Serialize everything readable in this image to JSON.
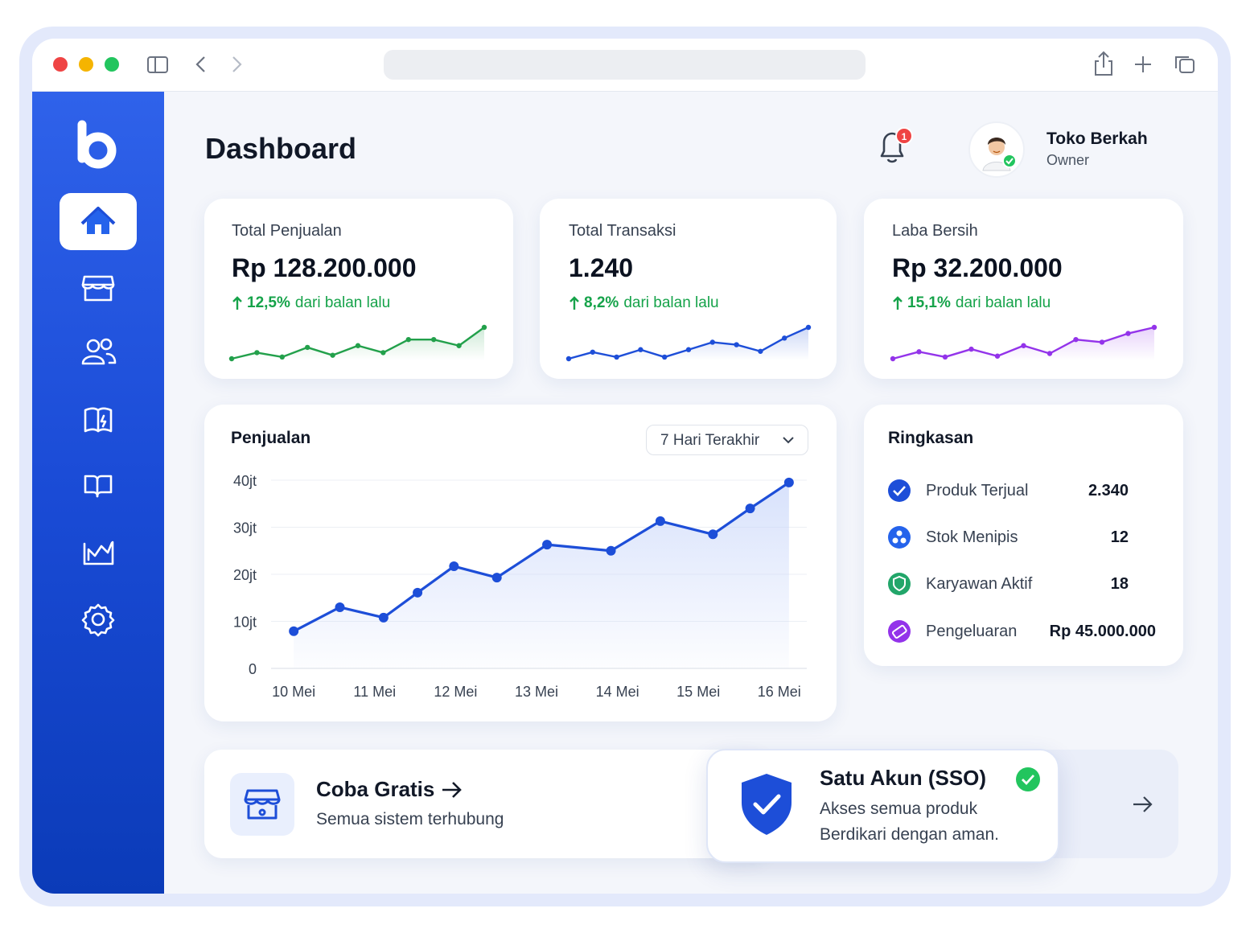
{
  "header": {
    "title": "Dashboard",
    "notification_count": "1",
    "user": {
      "name": "Toko Berkah",
      "role": "Owner"
    }
  },
  "stats": [
    {
      "label": "Total Penjualan",
      "value": "Rp 128.200.000",
      "change": "12,5%",
      "change_text": "dari balan lalu"
    },
    {
      "label": "Total Transaksi",
      "value": "1.240",
      "change": "8,2%",
      "change_text": "dari balan lalu"
    },
    {
      "label": "Laba Bersih",
      "value": "Rp 32.200.000",
      "change": "15,1%",
      "change_text": "dari balan lalu"
    }
  ],
  "chart_data": [
    {
      "type": "line",
      "title": "Penjualan",
      "period": "7 Hari Terakhir",
      "x": [
        0,
        0.57,
        1.11,
        1.53,
        1.98,
        2.51,
        3.13,
        3.92,
        4.53,
        5.18,
        5.64,
        6.12
      ],
      "series": [
        {
          "color": "#1d4ed8",
          "values": [
            7.9,
            13.0,
            10.8,
            16.1,
            21.7,
            19.3,
            26.3,
            25.0,
            31.3,
            28.5,
            34.0,
            39.5
          ]
        }
      ],
      "xlim": [
        -0.28,
        6.34
      ],
      "xticks": [
        {
          "value": 0,
          "label": "10 Mei"
        },
        {
          "value": 1,
          "label": "11 Mei"
        },
        {
          "value": 2,
          "label": "12 Mei"
        },
        {
          "value": 3,
          "label": "13 Mei"
        },
        {
          "value": 4,
          "label": "14 Mei"
        },
        {
          "value": 5,
          "label": "15 Mei"
        },
        {
          "value": 6,
          "label": "16 Mei"
        }
      ],
      "ylim": [
        0,
        40
      ],
      "yticks": [
        0,
        {
          "value": 10,
          "label": "10jt"
        },
        {
          "value": 20,
          "label": "20jt"
        },
        {
          "value": 30,
          "label": "30jt"
        },
        {
          "value": 40,
          "label": "40jt"
        }
      ],
      "grid": true
    },
    {
      "type": "sparkline",
      "color": "#22a04b",
      "values": [
        5,
        12,
        7,
        18,
        9,
        20,
        12,
        27,
        27,
        20,
        41
      ]
    },
    {
      "type": "sparkline",
      "color": "#1d4ed8",
      "values": [
        5,
        13,
        7,
        16,
        7,
        16,
        25,
        22,
        14,
        30,
        43
      ]
    },
    {
      "type": "sparkline",
      "color": "#9333ea",
      "values": [
        5,
        13,
        7,
        16,
        8,
        20,
        11,
        27,
        24,
        34,
        41
      ]
    }
  ],
  "summary": {
    "title": "Ringkasan",
    "items": [
      {
        "label": "Produk Terjual",
        "value": "2.340"
      },
      {
        "label": "Stok Menipis",
        "value": "12"
      },
      {
        "label": "Karyawan Aktif",
        "value": "18"
      },
      {
        "label": "Pengeluaran",
        "value": "Rp 45.000.000"
      }
    ]
  },
  "promo": {
    "title": "Coba Gratis",
    "subtitle": "Semua sistem terhubung"
  },
  "sso": {
    "title": "Satu Akun (SSO)",
    "lines": [
      "Akses semua produk",
      "Berdikari dengan aman."
    ]
  }
}
